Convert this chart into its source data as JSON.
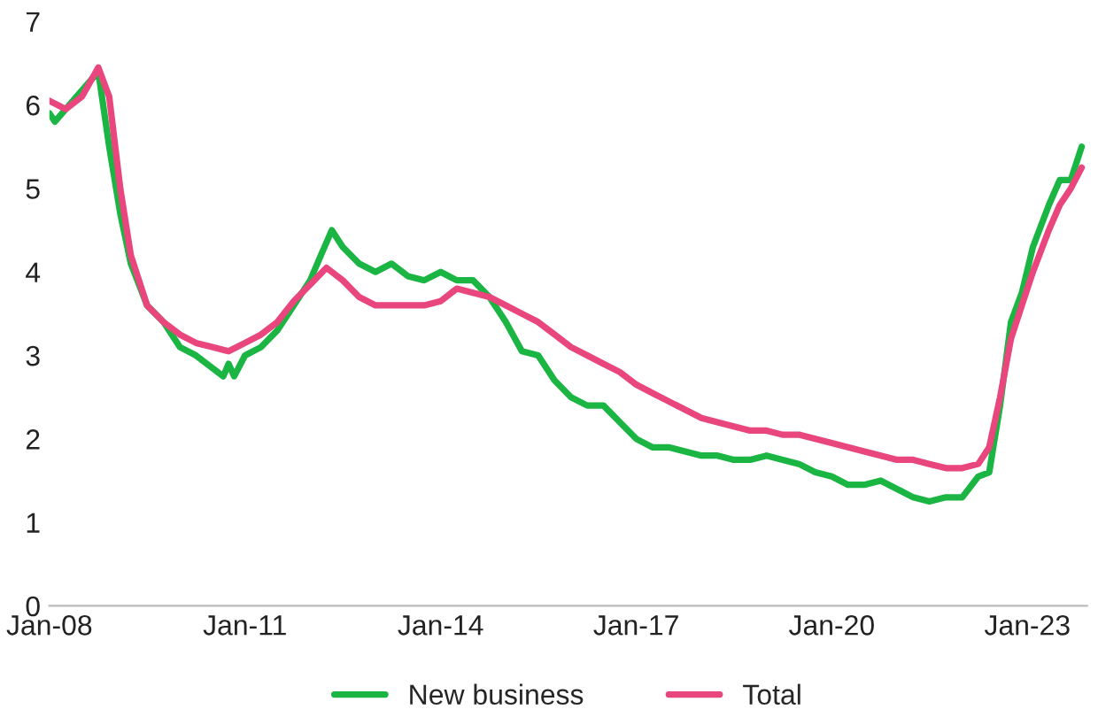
{
  "chart_data": {
    "type": "line",
    "series": [
      {
        "name": "New business",
        "color": "#1bb543",
        "x": [
          "2008-01",
          "2008-02",
          "2008-06",
          "2008-10",
          "2008-12",
          "2009-02",
          "2009-04",
          "2009-07",
          "2009-10",
          "2010-01",
          "2010-04",
          "2010-07",
          "2010-09",
          "2010-10",
          "2010-11",
          "2011-01",
          "2011-04",
          "2011-07",
          "2011-10",
          "2012-01",
          "2012-03",
          "2012-05",
          "2012-07",
          "2012-10",
          "2013-01",
          "2013-04",
          "2013-07",
          "2013-10",
          "2014-01",
          "2014-04",
          "2014-07",
          "2014-10",
          "2015-01",
          "2015-04",
          "2015-07",
          "2015-10",
          "2016-01",
          "2016-04",
          "2016-07",
          "2016-10",
          "2017-01",
          "2017-04",
          "2017-07",
          "2017-10",
          "2018-01",
          "2018-04",
          "2018-07",
          "2018-10",
          "2019-01",
          "2019-04",
          "2019-07",
          "2019-10",
          "2020-01",
          "2020-04",
          "2020-07",
          "2020-10",
          "2021-01",
          "2021-04",
          "2021-07",
          "2021-10",
          "2022-01",
          "2022-04",
          "2022-06",
          "2022-08",
          "2022-10",
          "2022-12",
          "2023-02",
          "2023-05",
          "2023-07",
          "2023-09",
          "2023-11"
        ],
        "values": [
          5.9,
          5.8,
          6.1,
          6.4,
          5.5,
          4.7,
          4.1,
          3.6,
          3.4,
          3.1,
          3.0,
          2.85,
          2.75,
          2.9,
          2.75,
          3.0,
          3.1,
          3.3,
          3.6,
          3.9,
          4.2,
          4.5,
          4.3,
          4.1,
          4.0,
          4.1,
          3.95,
          3.9,
          4.0,
          3.9,
          3.9,
          3.7,
          3.4,
          3.05,
          3.0,
          2.7,
          2.5,
          2.4,
          2.4,
          2.2,
          2.0,
          1.9,
          1.9,
          1.85,
          1.8,
          1.8,
          1.75,
          1.75,
          1.8,
          1.75,
          1.7,
          1.6,
          1.55,
          1.45,
          1.45,
          1.5,
          1.4,
          1.3,
          1.25,
          1.3,
          1.3,
          1.55,
          1.6,
          2.4,
          3.4,
          3.75,
          4.3,
          4.8,
          5.1,
          5.1,
          5.5
        ]
      },
      {
        "name": "Total",
        "color": "#e8467c",
        "x": [
          "2008-01",
          "2008-04",
          "2008-07",
          "2008-10",
          "2008-12",
          "2009-02",
          "2009-04",
          "2009-07",
          "2009-10",
          "2010-01",
          "2010-04",
          "2010-07",
          "2010-10",
          "2011-01",
          "2011-04",
          "2011-07",
          "2011-10",
          "2012-01",
          "2012-04",
          "2012-07",
          "2012-10",
          "2013-01",
          "2013-04",
          "2013-07",
          "2013-10",
          "2014-01",
          "2014-04",
          "2014-07",
          "2014-10",
          "2015-01",
          "2015-04",
          "2015-07",
          "2015-10",
          "2016-01",
          "2016-04",
          "2016-07",
          "2016-10",
          "2017-01",
          "2017-04",
          "2017-07",
          "2017-10",
          "2018-01",
          "2018-04",
          "2018-07",
          "2018-10",
          "2019-01",
          "2019-04",
          "2019-07",
          "2019-10",
          "2020-01",
          "2020-04",
          "2020-07",
          "2020-10",
          "2021-01",
          "2021-04",
          "2021-07",
          "2021-10",
          "2022-01",
          "2022-04",
          "2022-06",
          "2022-08",
          "2022-10",
          "2022-12",
          "2023-02",
          "2023-05",
          "2023-07",
          "2023-09",
          "2023-11"
        ],
        "values": [
          6.05,
          5.95,
          6.1,
          6.45,
          6.1,
          5.0,
          4.2,
          3.6,
          3.4,
          3.25,
          3.15,
          3.1,
          3.05,
          3.15,
          3.25,
          3.4,
          3.65,
          3.85,
          4.05,
          3.9,
          3.7,
          3.6,
          3.6,
          3.6,
          3.6,
          3.65,
          3.8,
          3.75,
          3.7,
          3.6,
          3.5,
          3.4,
          3.25,
          3.1,
          3.0,
          2.9,
          2.8,
          2.65,
          2.55,
          2.45,
          2.35,
          2.25,
          2.2,
          2.15,
          2.1,
          2.1,
          2.05,
          2.05,
          2.0,
          1.95,
          1.9,
          1.85,
          1.8,
          1.75,
          1.75,
          1.7,
          1.65,
          1.65,
          1.7,
          1.9,
          2.5,
          3.2,
          3.6,
          4.0,
          4.5,
          4.8,
          5.0,
          5.25
        ]
      }
    ],
    "xlim": [
      "2008-01",
      "2023-12"
    ],
    "xticks": [
      {
        "value": "2008-01",
        "label": "Jan-08"
      },
      {
        "value": "2011-01",
        "label": "Jan-11"
      },
      {
        "value": "2014-01",
        "label": "Jan-14"
      },
      {
        "value": "2017-01",
        "label": "Jan-17"
      },
      {
        "value": "2020-01",
        "label": "Jan-20"
      },
      {
        "value": "2023-01",
        "label": "Jan-23"
      }
    ],
    "ylim": [
      0,
      7
    ],
    "yticks": [
      0,
      1,
      2,
      3,
      4,
      5,
      6,
      7
    ],
    "grid": false,
    "legend": "bottom",
    "marker": "none",
    "line_style": "solid"
  }
}
